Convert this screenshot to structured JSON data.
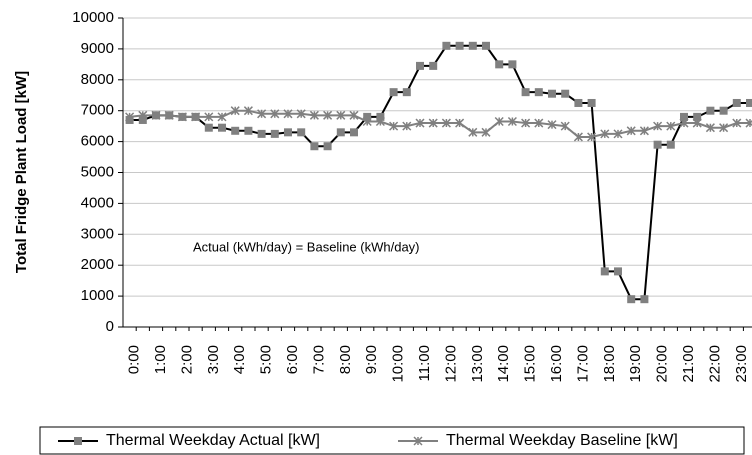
{
  "chart_data": {
    "type": "line",
    "y_label": "Total Fridge Plant Load [kW]",
    "annotation": "Actual (kWh/day) = Baseline (kWh/day)",
    "categories": [
      "0:00",
      null,
      "1:00",
      null,
      "2:00",
      null,
      "3:00",
      null,
      "4:00",
      null,
      "5:00",
      null,
      "6:00",
      null,
      "7:00",
      null,
      "8:00",
      null,
      "9:00",
      null,
      "10:00",
      null,
      "11:00",
      null,
      "12:00",
      null,
      "13:00",
      null,
      "14:00",
      null,
      "15:00",
      null,
      "16:00",
      null,
      "17:00",
      null,
      "18:00",
      null,
      "19:00",
      null,
      "20:00",
      null,
      "21:00",
      null,
      "22:00",
      null,
      "23:00",
      null
    ],
    "series": [
      {
        "name": "Thermal Weekday Actual  [kW]",
        "color": "#000000",
        "marker": "square",
        "marker_color": "#808080",
        "values": [
          6700,
          6700,
          6850,
          6850,
          6800,
          6800,
          6450,
          6450,
          6350,
          6350,
          6250,
          6250,
          6300,
          6300,
          5850,
          5850,
          6300,
          6300,
          6800,
          6800,
          7600,
          7600,
          8450,
          8450,
          9100,
          9100,
          9100,
          9100,
          8500,
          8500,
          7600,
          7600,
          7550,
          7550,
          7250,
          7250,
          1800,
          1800,
          900,
          900,
          5900,
          5900,
          6800,
          6800,
          7000,
          7000,
          7250,
          7250
        ]
      },
      {
        "name": "Thermal Weekday Baseline [kW]",
        "color": "#808080",
        "marker": "star",
        "marker_color": "#808080",
        "values": [
          6800,
          6850,
          6850,
          6850,
          6800,
          6800,
          6800,
          6800,
          7000,
          7000,
          6900,
          6900,
          6900,
          6900,
          6850,
          6850,
          6850,
          6850,
          6650,
          6650,
          6500,
          6500,
          6600,
          6600,
          6600,
          6600,
          6300,
          6300,
          6650,
          6650,
          6600,
          6600,
          6550,
          6500,
          6150,
          6150,
          6250,
          6250,
          6350,
          6350,
          6500,
          6500,
          6600,
          6600,
          6450,
          6450,
          6600,
          6600
        ]
      }
    ],
    "ylim": [
      0,
      10000
    ],
    "yticks": [
      0,
      1000,
      2000,
      3000,
      4000,
      5000,
      6000,
      7000,
      8000,
      9000,
      10000
    ],
    "grid": true,
    "legend": "bottom"
  }
}
